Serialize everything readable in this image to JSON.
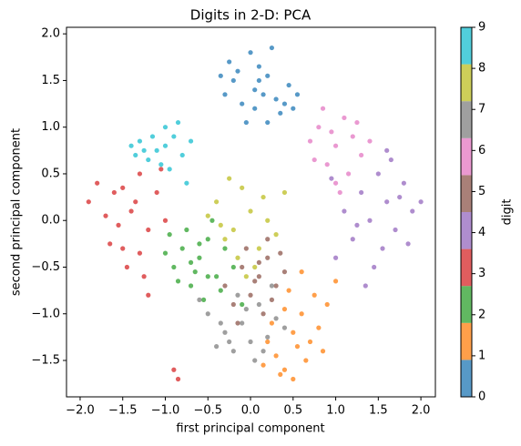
{
  "chart_data": {
    "type": "scatter",
    "title": "Digits in 2-D: PCA",
    "x_label": "first principal component",
    "y_label": "second principal component",
    "xlim": [
      -2.16,
      2.17
    ],
    "ylim": [
      -1.89,
      2.07
    ],
    "xticks": [
      {
        "value": -2,
        "label": "−2.0"
      },
      {
        "value": -1.5,
        "label": "−1.5"
      },
      {
        "value": -1,
        "label": "−1.0"
      },
      {
        "value": -0.5,
        "label": "−0.5"
      },
      {
        "value": 0,
        "label": "0.0"
      },
      0.5,
      {
        "value": 1,
        "label": "1.0"
      },
      1.5,
      {
        "value": 2,
        "label": "2.0"
      }
    ],
    "yticks": [
      {
        "value": -1.5,
        "label": "−1.5"
      },
      {
        "value": -1,
        "label": "−1.0"
      },
      {
        "value": -0.5,
        "label": "−0.5"
      },
      {
        "value": 0,
        "label": "0.0"
      },
      0.5,
      {
        "value": 1,
        "label": "1.0"
      },
      1.5,
      {
        "value": 2,
        "label": "2.0"
      }
    ],
    "colorbar": {
      "label": "digit",
      "lim": [
        0,
        9
      ],
      "ticks": [
        0,
        1,
        2,
        3,
        4,
        5,
        6,
        7,
        8,
        9
      ]
    },
    "series": [
      {
        "color": "#1f77b4",
        "x": [
          0.05,
          -0.2,
          0.3,
          0.1,
          -0.1,
          0.45,
          0.2,
          -0.3,
          0.0,
          0.35,
          -0.05,
          0.15,
          0.5,
          -0.25,
          0.25,
          0.1,
          -0.15,
          0.4,
          0.05,
          -0.35,
          0.2,
          0.55
        ],
        "y": [
          1.4,
          1.5,
          1.3,
          1.65,
          1.25,
          1.45,
          1.55,
          1.35,
          1.8,
          1.15,
          1.05,
          1.35,
          1.2,
          1.7,
          1.85,
          1.5,
          1.6,
          1.25,
          1.2,
          1.55,
          1.05,
          1.35
        ]
      },
      {
        "color": "#ff7f0e",
        "x": [
          0.5,
          0.7,
          0.3,
          0.9,
          0.4,
          0.6,
          0.8,
          0.2,
          0.45,
          0.65,
          0.35,
          1.0,
          0.55,
          0.75,
          0.25,
          0.5,
          0.85,
          0.15,
          0.6,
          0.4
        ],
        "y": [
          -1.2,
          -1.3,
          -1.45,
          -0.9,
          -1.6,
          -1.0,
          -1.15,
          -1.3,
          -0.75,
          -1.5,
          -1.65,
          -0.65,
          -1.35,
          -0.8,
          -1.1,
          -1.7,
          -1.4,
          -1.55,
          -0.55,
          -0.95
        ]
      },
      {
        "color": "#2ca02c",
        "x": [
          -0.6,
          -0.8,
          -0.4,
          -0.9,
          -0.5,
          -0.7,
          -0.3,
          -1.0,
          -0.55,
          -0.75,
          -0.2,
          -0.65,
          -0.45,
          -0.85,
          -0.35,
          -0.95,
          -0.6,
          -0.1,
          -0.7,
          -0.5
        ],
        "y": [
          -0.4,
          -0.3,
          -0.6,
          -0.5,
          -0.2,
          -0.7,
          -0.3,
          -0.35,
          -0.85,
          -0.1,
          -0.5,
          -0.55,
          0.0,
          -0.65,
          -0.75,
          -0.15,
          -0.25,
          -0.9,
          -0.45,
          -0.6
        ]
      },
      {
        "color": "#d62728",
        "x": [
          -1.4,
          -1.6,
          -1.2,
          -1.5,
          -1.8,
          -1.3,
          -1.0,
          -1.7,
          -1.45,
          -1.1,
          -1.55,
          -1.25,
          -1.9,
          -0.9,
          -1.35,
          -1.65,
          -1.2,
          -1.05,
          -1.5,
          -0.85,
          -1.3
        ],
        "y": [
          0.1,
          0.3,
          -0.1,
          -0.3,
          0.4,
          0.5,
          0.0,
          0.05,
          -0.5,
          0.3,
          -0.05,
          -0.6,
          0.2,
          -1.6,
          0.2,
          -0.25,
          -0.8,
          0.55,
          0.35,
          -1.7,
          -0.35
        ]
      },
      {
        "color": "#9467bd",
        "x": [
          1.6,
          1.4,
          1.8,
          1.2,
          1.7,
          1.5,
          1.9,
          1.3,
          1.0,
          1.65,
          1.45,
          1.85,
          1.1,
          1.75,
          1.35,
          1.55,
          0.95,
          1.6,
          2.0,
          1.25
        ],
        "y": [
          0.2,
          0.0,
          0.4,
          -0.2,
          -0.1,
          0.5,
          0.1,
          0.3,
          -0.4,
          0.65,
          -0.5,
          -0.25,
          0.1,
          0.25,
          -0.7,
          -0.3,
          0.45,
          0.75,
          0.2,
          -0.05
        ]
      },
      {
        "color": "#8c564b",
        "x": [
          0.1,
          -0.1,
          0.3,
          0.0,
          0.2,
          -0.2,
          0.4,
          0.15,
          -0.05,
          0.25,
          0.05,
          -0.3,
          0.35,
          0.1,
          -0.15,
          0.2
        ],
        "y": [
          -0.6,
          -0.5,
          -0.7,
          -0.8,
          -0.4,
          -0.9,
          -0.55,
          -1.0,
          -0.3,
          -0.85,
          -0.65,
          -0.7,
          -0.35,
          -0.45,
          -1.1,
          -0.2
        ]
      },
      {
        "color": "#e377c2",
        "x": [
          1.0,
          0.8,
          1.2,
          0.9,
          1.1,
          0.7,
          1.3,
          1.0,
          0.85,
          1.15,
          0.95,
          1.25,
          0.75,
          1.05,
          1.4
        ],
        "y": [
          0.8,
          1.0,
          0.9,
          0.6,
          1.1,
          0.85,
          0.7,
          0.4,
          1.2,
          0.5,
          0.95,
          1.05,
          0.65,
          0.3,
          0.85
        ]
      },
      {
        "color": "#7f7f7f",
        "x": [
          -0.1,
          -0.3,
          0.1,
          -0.5,
          0.2,
          -0.2,
          0.0,
          -0.4,
          0.3,
          -0.15,
          0.05,
          -0.35,
          0.4,
          -0.05,
          0.15,
          -0.25,
          -0.6,
          0.25
        ],
        "y": [
          -1.1,
          -1.2,
          -0.9,
          -1.0,
          -1.25,
          -1.4,
          -1.3,
          -1.35,
          -1.05,
          -0.8,
          -1.5,
          -1.1,
          -1.15,
          -0.95,
          -1.4,
          -1.3,
          -0.85,
          -0.7
        ]
      },
      {
        "color": "#bcbd22",
        "x": [
          -0.2,
          0.0,
          -0.4,
          0.1,
          -0.3,
          0.2,
          -0.1,
          -0.5,
          0.05,
          -0.25,
          0.3,
          -0.15,
          -0.35,
          0.15,
          -0.05,
          0.4
        ],
        "y": [
          -0.1,
          0.1,
          0.2,
          -0.3,
          -0.2,
          0.0,
          0.35,
          0.05,
          -0.5,
          0.45,
          -0.15,
          -0.4,
          -0.05,
          0.25,
          -0.6,
          0.3
        ]
      },
      {
        "color": "#17becf",
        "x": [
          -1.1,
          -1.3,
          -0.9,
          -1.2,
          -1.0,
          -1.4,
          -0.8,
          -1.15,
          -0.95,
          -1.25,
          -0.85,
          -1.05,
          -0.7,
          -1.35,
          -0.75,
          -1.0
        ],
        "y": [
          0.75,
          0.85,
          0.9,
          0.65,
          1.0,
          0.8,
          0.7,
          0.9,
          0.55,
          0.75,
          1.05,
          0.6,
          0.85,
          0.7,
          0.4,
          0.8
        ]
      }
    ]
  }
}
